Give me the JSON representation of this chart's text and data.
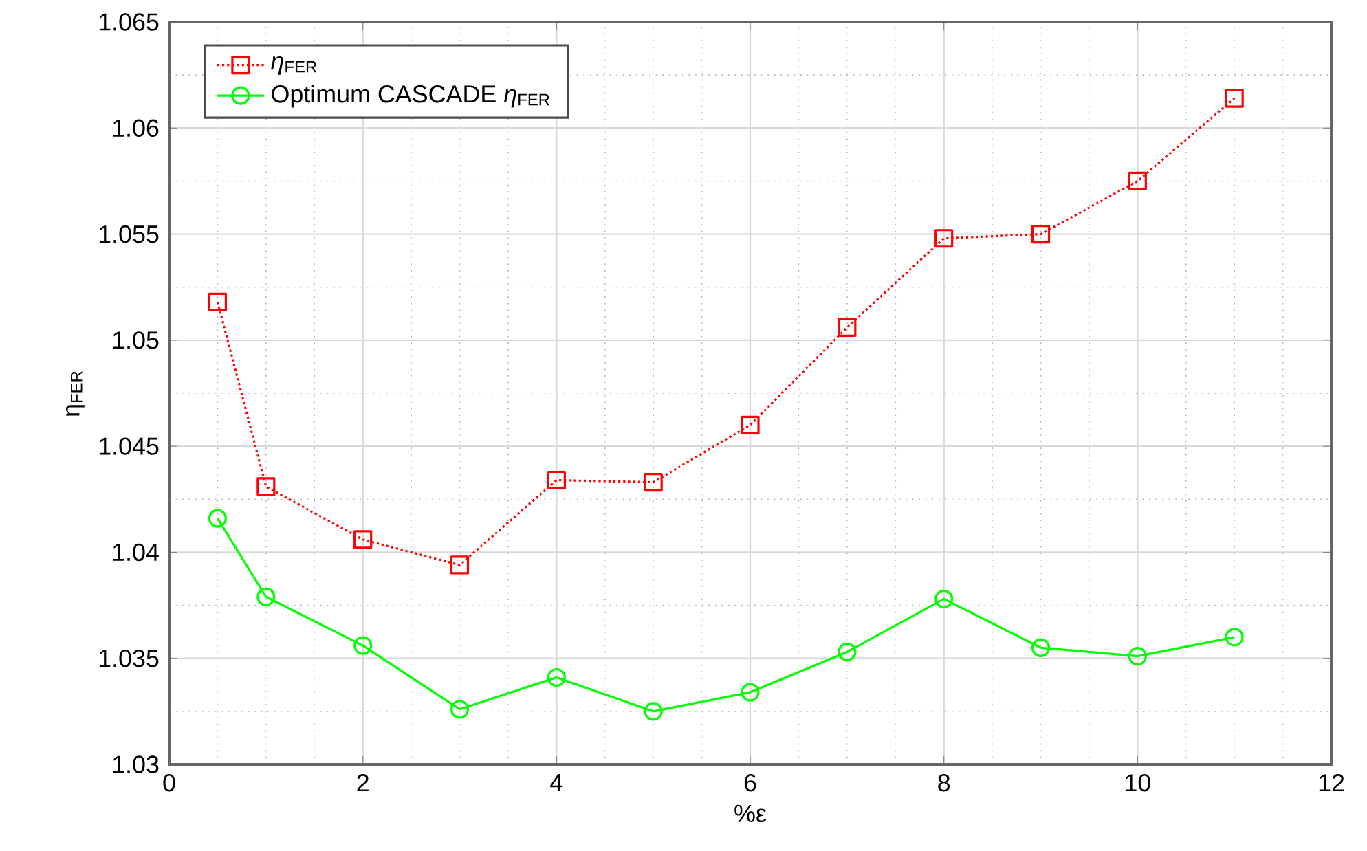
{
  "chart_data": {
    "type": "line",
    "xlabel": "%ε",
    "ylabel": "η$_{FER}$",
    "x": [
      0.5,
      1,
      2,
      3,
      4,
      5,
      6,
      7,
      8,
      9,
      10,
      11
    ],
    "series": [
      {
        "name": "*η*$_{FER}$",
        "color": "#ff0000",
        "marker": "square",
        "line_style": "dotted",
        "values": [
          1.0518,
          1.0431,
          1.0406,
          1.0394,
          1.0434,
          1.0433,
          1.046,
          1.0506,
          1.0548,
          1.055,
          1.0575,
          1.0614
        ]
      },
      {
        "name": "Optimum CASCADE *η*$_{FER}$",
        "color": "#00ff00",
        "marker": "circle",
        "line_style": "solid",
        "values": [
          1.0416,
          1.0379,
          1.0356,
          1.0326,
          1.0341,
          1.0325,
          1.0334,
          1.0353,
          1.0378,
          1.0355,
          1.0351,
          1.036
        ]
      }
    ],
    "xlim": [
      0,
      12
    ],
    "xticks": [
      0,
      2,
      4,
      6,
      8,
      10,
      12
    ],
    "ylim": [
      1.03,
      1.065
    ],
    "yticks": [
      1.03,
      1.035,
      1.04,
      1.045,
      1.05,
      1.055,
      1.06,
      1.065
    ],
    "grid": true,
    "legend": "top left"
  }
}
